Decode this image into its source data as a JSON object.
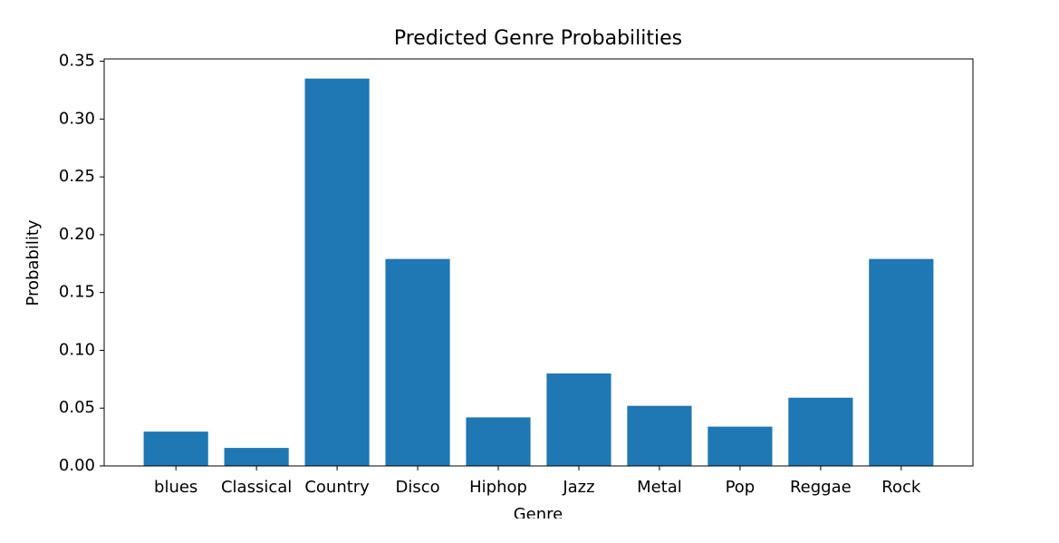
{
  "chart_data": {
    "type": "bar",
    "title": "Predicted Genre Probabilities",
    "x_label": "Genre",
    "y_label": "Probability",
    "categories": [
      "blues",
      "Classical",
      "Country",
      "Disco",
      "Hiphop",
      "Jazz",
      "Metal",
      "Pop",
      "Reggae",
      "Rock"
    ],
    "values": [
      0.0297,
      0.0156,
      0.335,
      0.179,
      0.042,
      0.08,
      0.052,
      0.034,
      0.059,
      0.179
    ],
    "color": "#1f77b4",
    "ylim": [
      0,
      0.352
    ],
    "yticks": [
      {
        "value": 0,
        "label": "0.00"
      },
      {
        "value": 0.05,
        "label": "0.05"
      },
      {
        "value": 0.1,
        "label": "0.10"
      },
      {
        "value": 0.15,
        "label": "0.15"
      },
      {
        "value": 0.2,
        "label": "0.20"
      },
      {
        "value": 0.25,
        "label": "0.25"
      },
      {
        "value": 0.3,
        "label": "0.30"
      },
      {
        "value": 0.35,
        "label": "0.35"
      }
    ],
    "grid": false
  }
}
